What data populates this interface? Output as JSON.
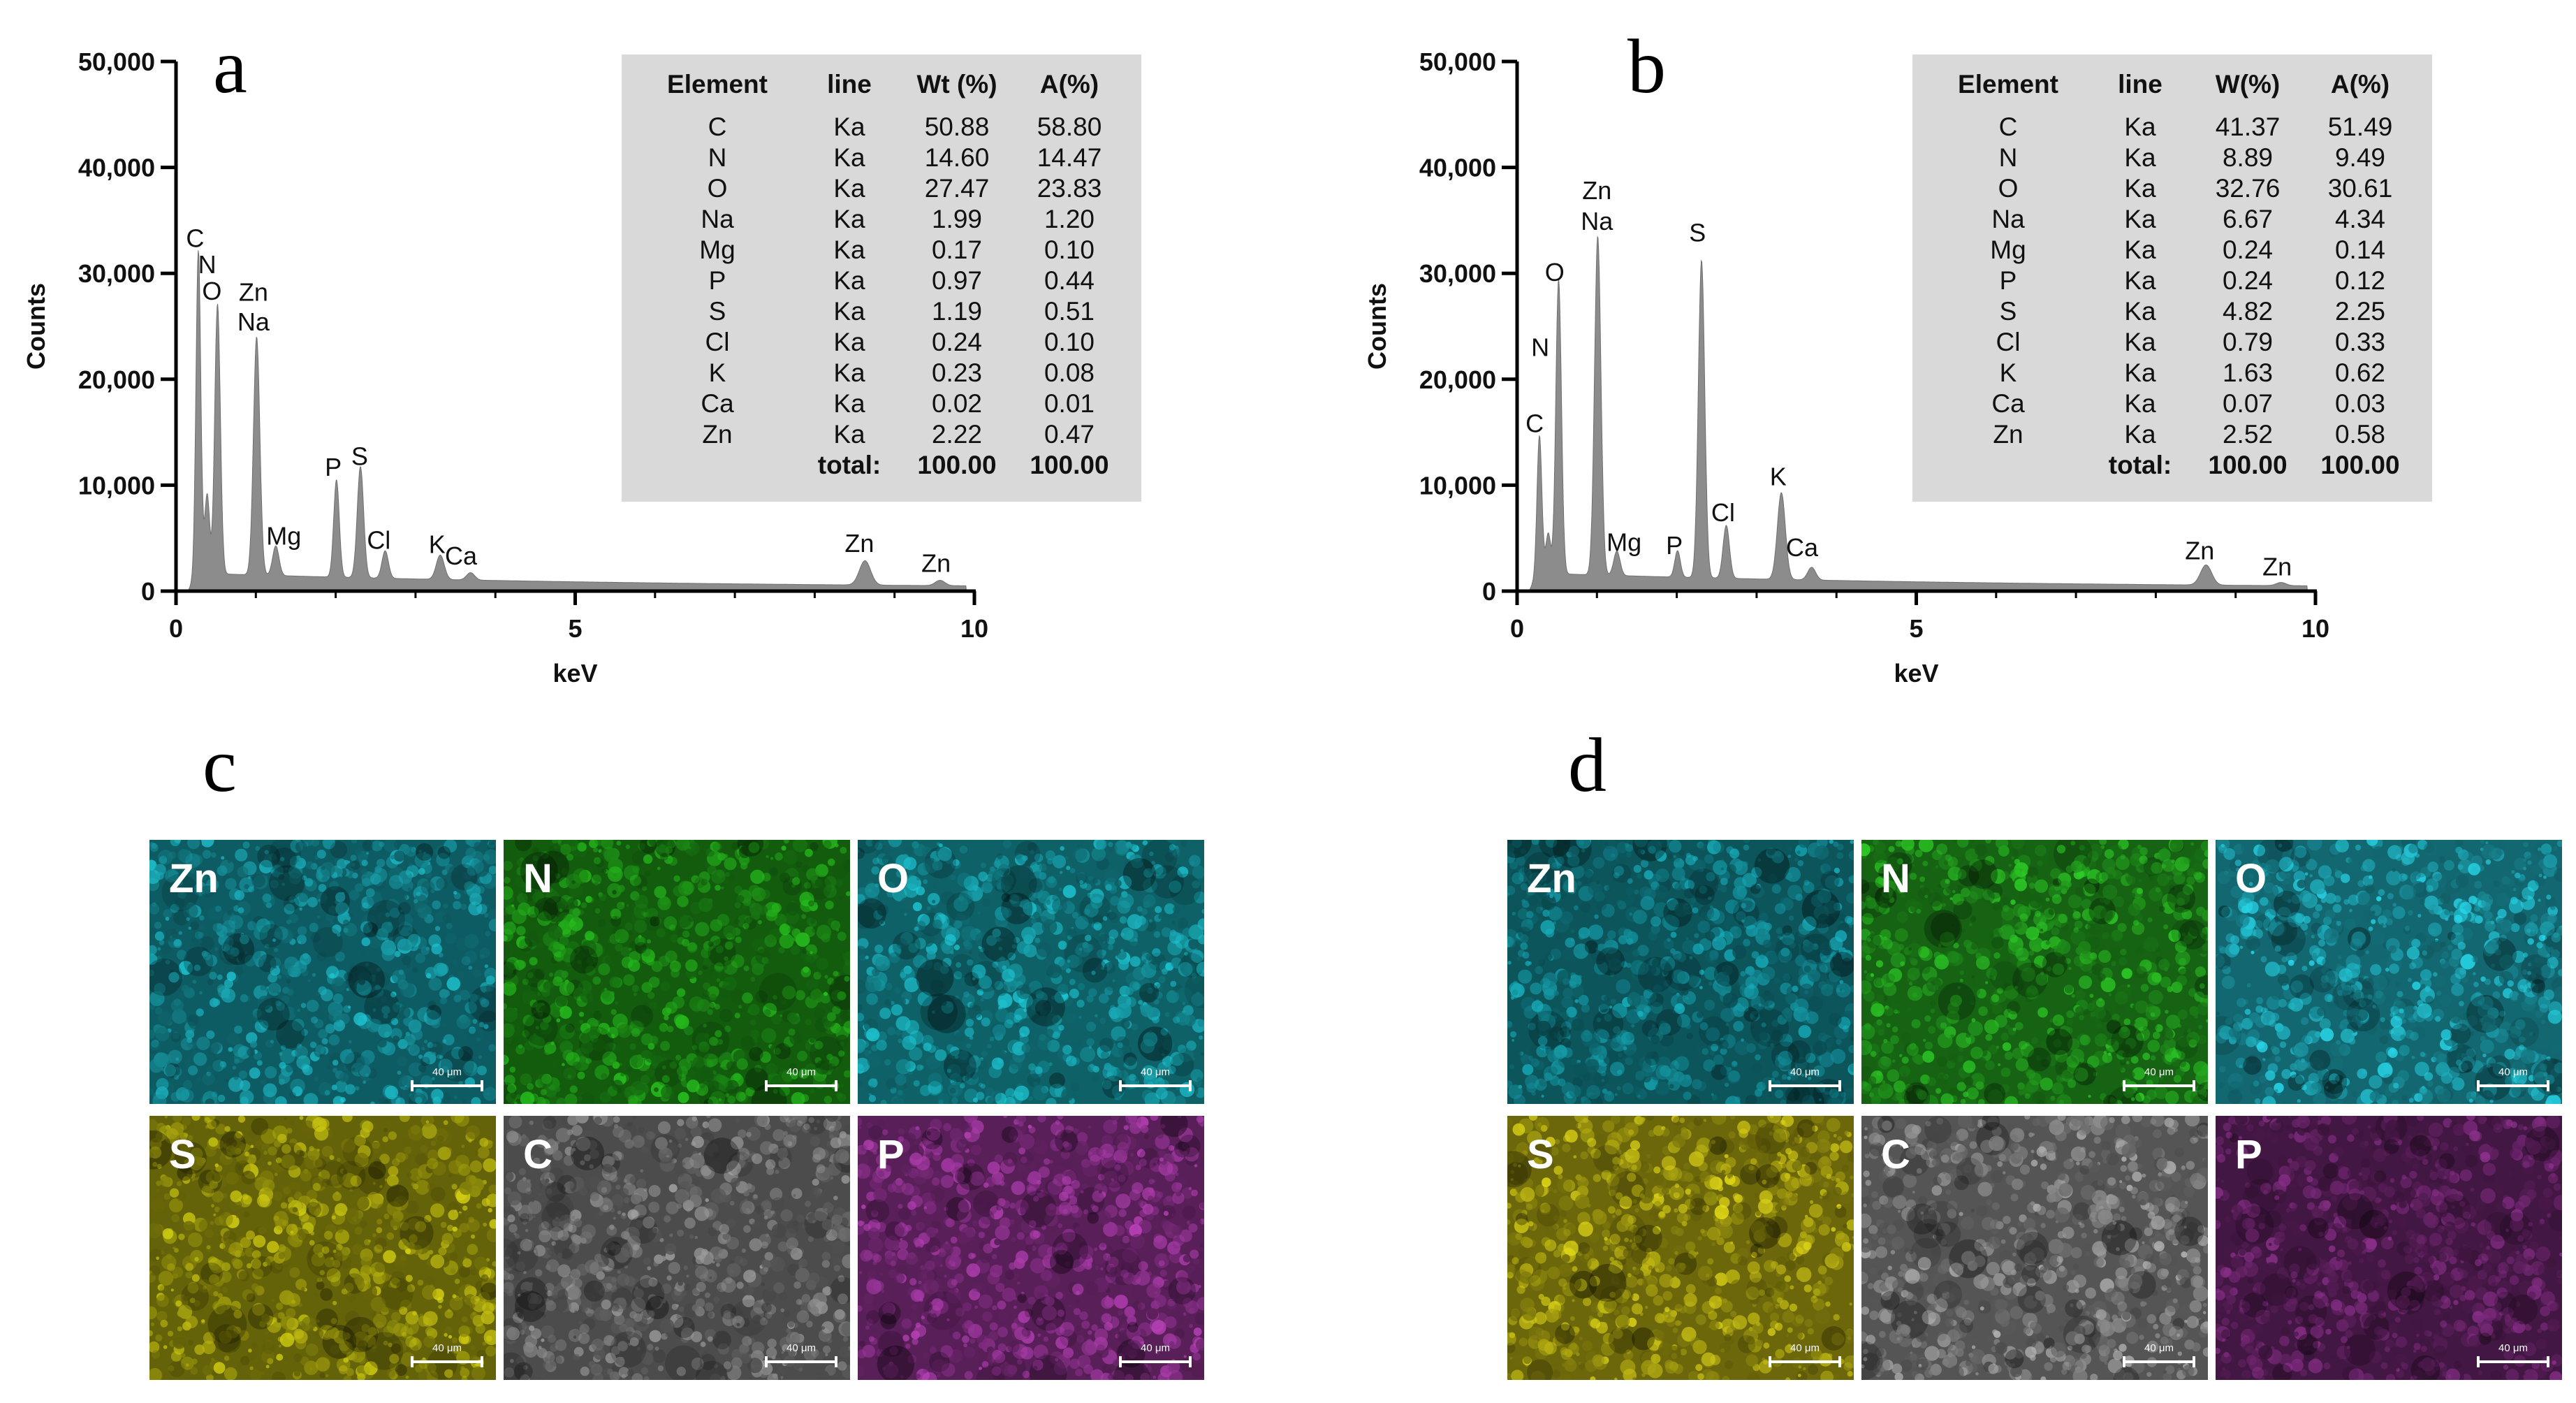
{
  "chart_data": [
    {
      "panel": "a",
      "type": "area",
      "xlabel": "keV",
      "ylabel": "Counts",
      "xlim": [
        0,
        10
      ],
      "ylim": [
        0,
        50000
      ],
      "x_ticks": [
        "0",
        "5",
        "10"
      ],
      "y_ticks": [
        "0",
        "10,000",
        "20,000",
        "30,000",
        "40,000",
        "50,000"
      ],
      "fill_color": "#8c8c8c",
      "peaks": [
        {
          "x": 0.28,
          "y": 30500,
          "w": 0.03
        },
        {
          "x": 0.39,
          "y": 7500,
          "w": 0.03
        },
        {
          "x": 0.52,
          "y": 25500,
          "w": 0.035
        },
        {
          "x": 1.01,
          "y": 22500,
          "w": 0.04
        },
        {
          "x": 1.25,
          "y": 2800,
          "w": 0.04
        },
        {
          "x": 2.01,
          "y": 9200,
          "w": 0.035
        },
        {
          "x": 2.31,
          "y": 10500,
          "w": 0.04
        },
        {
          "x": 2.62,
          "y": 2600,
          "w": 0.04
        },
        {
          "x": 3.31,
          "y": 2300,
          "w": 0.05
        },
        {
          "x": 3.69,
          "y": 700,
          "w": 0.05
        },
        {
          "x": 8.63,
          "y": 2300,
          "w": 0.07
        },
        {
          "x": 9.57,
          "y": 500,
          "w": 0.06
        }
      ],
      "labels": [
        {
          "text": "C",
          "x": 0.24,
          "y": 32500
        },
        {
          "text": "N",
          "x": 0.39,
          "y": 30000
        },
        {
          "text": "O",
          "x": 0.45,
          "y": 27500
        },
        {
          "text": "Zn",
          "x": 0.97,
          "y": 27400
        },
        {
          "text": "Na",
          "x": 0.97,
          "y": 24600
        },
        {
          "text": "Mg",
          "x": 1.35,
          "y": 4400
        },
        {
          "text": "P",
          "x": 1.97,
          "y": 10900
        },
        {
          "text": "S",
          "x": 2.3,
          "y": 11900
        },
        {
          "text": "Cl",
          "x": 2.54,
          "y": 4000
        },
        {
          "text": "K",
          "x": 3.27,
          "y": 3600
        },
        {
          "text": "Ca",
          "x": 3.57,
          "y": 2500
        },
        {
          "text": "Zn",
          "x": 8.56,
          "y": 3700
        },
        {
          "text": "Zn",
          "x": 9.52,
          "y": 1800
        }
      ],
      "table": {
        "headers": [
          "Element",
          "line",
          "Wt (%)",
          "A(%)"
        ],
        "rows": [
          [
            "C",
            "Ka",
            "50.88",
            "58.80"
          ],
          [
            "N",
            "Ka",
            "14.60",
            "14.47"
          ],
          [
            "O",
            "Ka",
            "27.47",
            "23.83"
          ],
          [
            "Na",
            "Ka",
            "1.99",
            "1.20"
          ],
          [
            "Mg",
            "Ka",
            "0.17",
            "0.10"
          ],
          [
            "P",
            "Ka",
            "0.97",
            "0.44"
          ],
          [
            "S",
            "Ka",
            "1.19",
            "0.51"
          ],
          [
            "Cl",
            "Ka",
            "0.24",
            "0.10"
          ],
          [
            "K",
            "Ka",
            "0.23",
            "0.08"
          ],
          [
            "Ca",
            "Ka",
            "0.02",
            "0.01"
          ],
          [
            "Zn",
            "Ka",
            "2.22",
            "0.47"
          ]
        ],
        "total": [
          "",
          "total:",
          "100.00",
          "100.00"
        ]
      }
    },
    {
      "panel": "b",
      "type": "area",
      "xlabel": "keV",
      "ylabel": "Counts",
      "xlim": [
        0,
        10
      ],
      "ylim": [
        0,
        50000
      ],
      "x_ticks": [
        "0",
        "5",
        "10"
      ],
      "y_ticks": [
        "0",
        "10,000",
        "20,000",
        "30,000",
        "40,000",
        "50,000"
      ],
      "fill_color": "#8c8c8c",
      "peaks": [
        {
          "x": 0.28,
          "y": 13000,
          "w": 0.03
        },
        {
          "x": 0.39,
          "y": 3800,
          "w": 0.03
        },
        {
          "x": 0.52,
          "y": 27800,
          "w": 0.035
        },
        {
          "x": 1.01,
          "y": 32000,
          "w": 0.04
        },
        {
          "x": 1.25,
          "y": 2300,
          "w": 0.04
        },
        {
          "x": 2.01,
          "y": 2500,
          "w": 0.035
        },
        {
          "x": 2.31,
          "y": 30000,
          "w": 0.04
        },
        {
          "x": 2.62,
          "y": 5000,
          "w": 0.04
        },
        {
          "x": 3.31,
          "y": 8200,
          "w": 0.05
        },
        {
          "x": 3.69,
          "y": 1200,
          "w": 0.05
        },
        {
          "x": 8.63,
          "y": 1900,
          "w": 0.07
        },
        {
          "x": 9.57,
          "y": 300,
          "w": 0.06
        }
      ],
      "labels": [
        {
          "text": "C",
          "x": 0.22,
          "y": 15000
        },
        {
          "text": "N",
          "x": 0.29,
          "y": 22200
        },
        {
          "text": "O",
          "x": 0.47,
          "y": 29300
        },
        {
          "text": "Zn",
          "x": 1.0,
          "y": 37000
        },
        {
          "text": "Na",
          "x": 1.0,
          "y": 34100
        },
        {
          "text": "Mg",
          "x": 1.34,
          "y": 3800
        },
        {
          "text": "P",
          "x": 1.97,
          "y": 3500
        },
        {
          "text": "S",
          "x": 2.26,
          "y": 33000
        },
        {
          "text": "Cl",
          "x": 2.58,
          "y": 6600
        },
        {
          "text": "K",
          "x": 3.27,
          "y": 10000
        },
        {
          "text": "Ca",
          "x": 3.57,
          "y": 3300
        },
        {
          "text": "Zn",
          "x": 8.55,
          "y": 3000
        },
        {
          "text": "Zn",
          "x": 9.52,
          "y": 1500
        }
      ],
      "table": {
        "headers": [
          "Element",
          "line",
          "W(%)",
          "A(%)"
        ],
        "rows": [
          [
            "C",
            "Ka",
            "41.37",
            "51.49"
          ],
          [
            "N",
            "Ka",
            "8.89",
            "9.49"
          ],
          [
            "O",
            "Ka",
            "32.76",
            "30.61"
          ],
          [
            "Na",
            "Ka",
            "6.67",
            "4.34"
          ],
          [
            "Mg",
            "Ka",
            "0.24",
            "0.14"
          ],
          [
            "P",
            "Ka",
            "0.24",
            "0.12"
          ],
          [
            "S",
            "Ka",
            "4.82",
            "2.25"
          ],
          [
            "Cl",
            "Ka",
            "0.79",
            "0.33"
          ],
          [
            "K",
            "Ka",
            "1.63",
            "0.62"
          ],
          [
            "Ca",
            "Ka",
            "0.07",
            "0.03"
          ],
          [
            "Zn",
            "Ka",
            "2.52",
            "0.58"
          ]
        ],
        "total": [
          "",
          "total:",
          "100.00",
          "100.00"
        ]
      }
    }
  ],
  "maps": [
    {
      "panel": "c",
      "tiles": [
        {
          "label": "Zn",
          "color": "#1aa8b4",
          "scale": "40 μm"
        },
        {
          "label": "N",
          "color": "#22a81a",
          "scale": "40 μm"
        },
        {
          "label": "O",
          "color": "#1ab0bc",
          "scale": "40 μm"
        },
        {
          "label": "S",
          "color": "#b8b410",
          "scale": "40 μm"
        },
        {
          "label": "C",
          "color": "#8a8a8a",
          "scale": "40 μm"
        },
        {
          "label": "P",
          "color": "#a038a0",
          "scale": "40 μm"
        }
      ]
    },
    {
      "panel": "d",
      "tiles": [
        {
          "label": "Zn",
          "color": "#159aa6",
          "scale": "40 μm"
        },
        {
          "label": "N",
          "color": "#28b422",
          "scale": "40 μm"
        },
        {
          "label": "O",
          "color": "#22bccc",
          "scale": "40 μm"
        },
        {
          "label": "S",
          "color": "#c4bc14",
          "scale": "40 μm"
        },
        {
          "label": "C",
          "color": "#9a9a9a",
          "scale": "40 μm"
        },
        {
          "label": "P",
          "color": "#7a2a7a",
          "scale": "40 μm"
        }
      ]
    }
  ]
}
